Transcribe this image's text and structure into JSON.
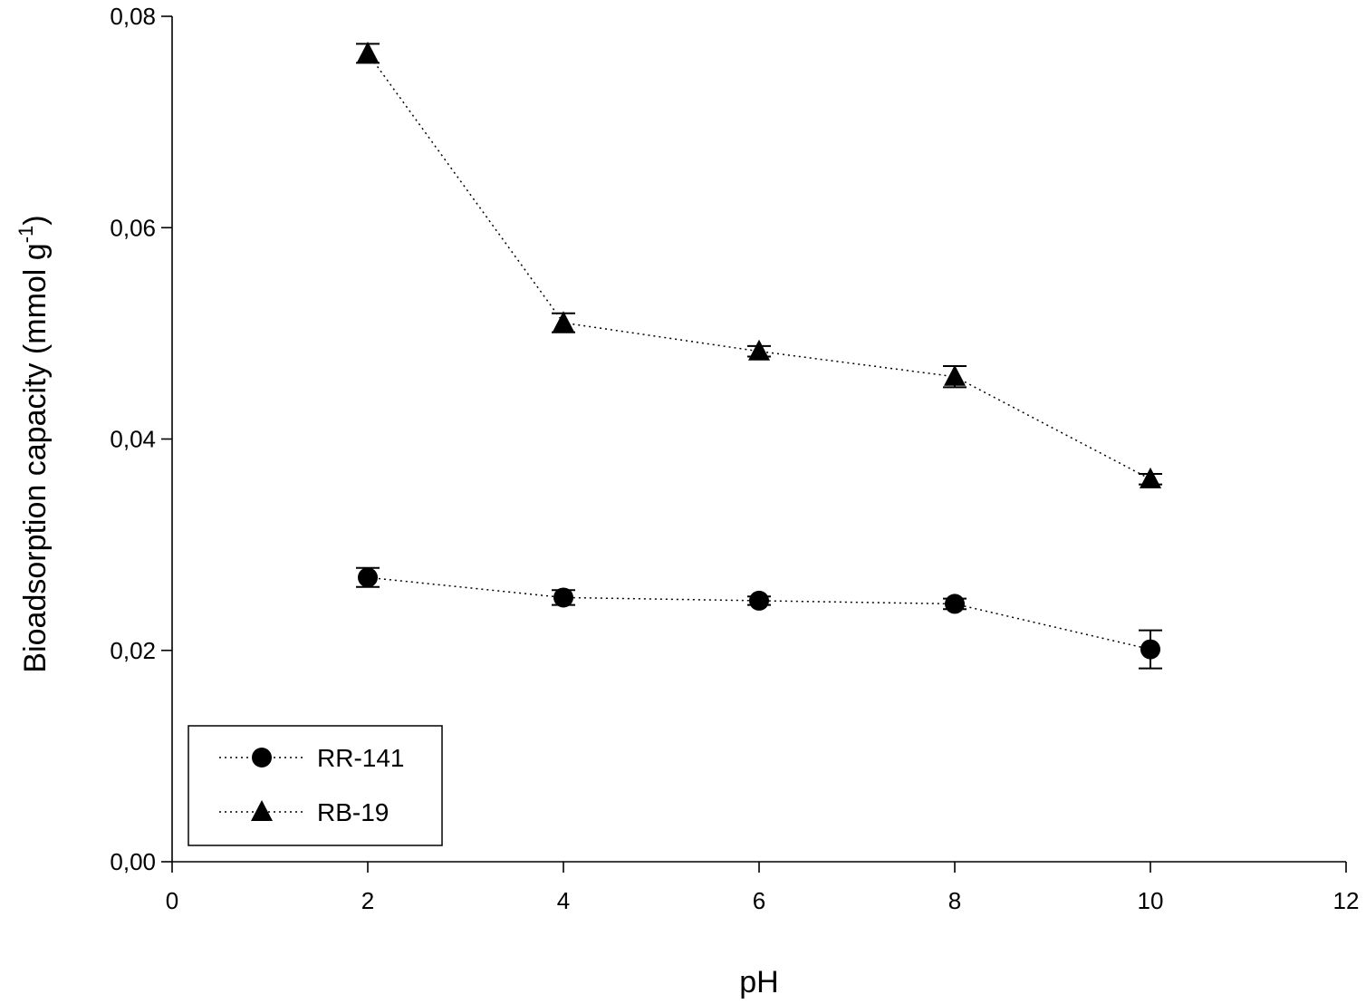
{
  "chart_data": {
    "type": "scatter",
    "xlabel": "pH",
    "ylabel_main": "Bioadsorption capacity (mmol g",
    "ylabel_sup": "-1",
    "ylabel_end": ")",
    "xlim": [
      0,
      12
    ],
    "ylim": [
      0,
      0.08
    ],
    "xticks": [
      0,
      2,
      4,
      6,
      8,
      10,
      12
    ],
    "xtick_labels": [
      "0",
      "2",
      "4",
      "6",
      "8",
      "10",
      "12"
    ],
    "yticks": [
      0,
      0.02,
      0.04,
      0.06,
      0.08
    ],
    "ytick_labels": [
      "0,00",
      "0,02",
      "0,04",
      "0,06",
      "0,08"
    ],
    "grid": false,
    "legend_position": "bottom-left",
    "series": [
      {
        "name": "RR-141",
        "marker": "circle",
        "line": "dotted",
        "x": [
          2,
          4,
          6,
          8,
          10
        ],
        "y": [
          0.0269,
          0.025,
          0.0247,
          0.0244,
          0.0201
        ],
        "err": [
          0.0009,
          0.0007,
          0.0004,
          0.0005,
          0.0018
        ]
      },
      {
        "name": "RB-19",
        "marker": "triangle",
        "line": "dotted",
        "x": [
          2,
          4,
          6,
          8,
          10
        ],
        "y": [
          0.0765,
          0.051,
          0.0483,
          0.0459,
          0.0362
        ],
        "err": [
          0.0009,
          0.0009,
          0.0005,
          0.001,
          0.0005
        ]
      }
    ]
  }
}
